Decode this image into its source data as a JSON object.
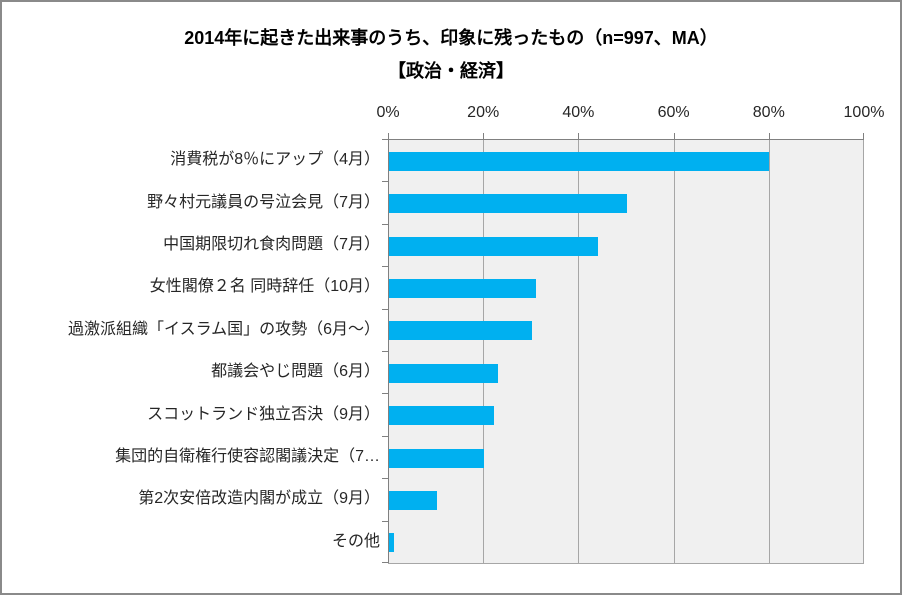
{
  "chart_data": {
    "type": "bar",
    "orientation": "horizontal",
    "title": "2014年に起きた出来事のうち、印象に残ったもの（n=997、MA）",
    "subtitle": "【政治・経済】",
    "categories": [
      "消費税が8％にアップ（4月）",
      "野々村元議員の号泣会見（7月）",
      "中国期限切れ食肉問題（7月）",
      "女性閣僚２名 同時辞任（10月）",
      "過激派組織「イスラム国」の攻勢（6月～）",
      "都議会やじ問題（6月）",
      "スコットランド独立否決（9月）",
      "集団的自衛権行使容認閣議決定（7…",
      "第2次安倍改造内閣が成立（9月）",
      "その他"
    ],
    "values": [
      80,
      50,
      44,
      31,
      30,
      23,
      22,
      20,
      10,
      1
    ],
    "x_ticks": [
      "0%",
      "20%",
      "40%",
      "60%",
      "80%",
      "100%"
    ],
    "xlim": [
      0,
      100
    ],
    "xlabel": "",
    "ylabel": "",
    "legend": "none",
    "grid": "vertical",
    "colors": {
      "bar": "#00B0F0",
      "plot_bg": "#F0F0F0",
      "gridline": "#A6A6A6",
      "axis": "#808080",
      "text": "#262626",
      "frame_border": "#8A8A8A"
    }
  }
}
